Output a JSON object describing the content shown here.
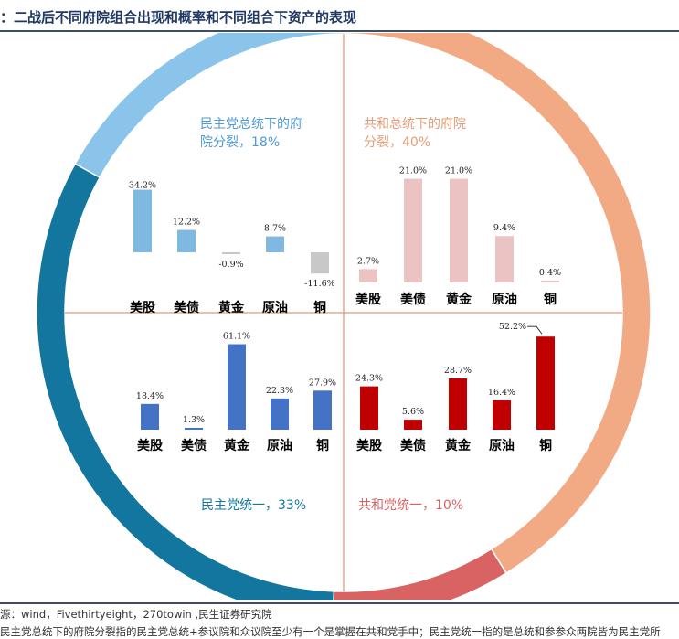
{
  "page": {
    "title": "：二战后不同府院组合出现和概率和不同组合下资产的表现",
    "source": "源：wind，Fivethirtyeight，270towin ,民生证券研究院",
    "note": "民主党总统下的府院分裂指的民主党总统+参议院和众议院至少有一个是掌握在共和党手中；民主党统一指的是总统和参参众两院皆为民主党所"
  },
  "colors": {
    "dem_split": "#8bc4ea",
    "rep_split": "#f2aa84",
    "dem_unified": "#12769e",
    "rep_unified": "#d96363",
    "bar_dem_split": "#7fb8e0",
    "bar_dem_split_neg": "#c8c8c8",
    "bar_rep_split": "#ecc3c3",
    "bar_dem_unified": "#4472c4",
    "bar_rep_unified": "#c00000",
    "divider": "#e49a76",
    "title_dem_split": "#4f9bd6",
    "title_rep_split": "#e69c74",
    "title_dem_unified": "#12769e",
    "title_rep_unified": "#d96363"
  },
  "chart_data": {
    "type": "bar",
    "ring": {
      "type": "pie",
      "categories": [
        "民主党总统下的府院分裂",
        "共和总统下的府院分裂",
        "共和党统一",
        "民主党统一"
      ],
      "values": [
        18,
        40,
        10,
        33
      ]
    },
    "categories": [
      "美股",
      "美债",
      "黄金",
      "原油",
      "铜"
    ],
    "panels": [
      {
        "id": "dem_split",
        "title": "民主党总统下的府院分裂，18%",
        "title_lines": [
          "民主党总统下的府",
          "院分裂，18%"
        ],
        "values": [
          34.2,
          12.2,
          -0.9,
          8.7,
          -11.6
        ],
        "labels": [
          "34.2%",
          "12.2%",
          "-0.9%",
          "8.7%",
          "-11.6%"
        ]
      },
      {
        "id": "rep_split",
        "title": "共和总统下的府院分裂，40%",
        "title_lines": [
          "共和总统下的府院",
          "分裂，40%"
        ],
        "values": [
          2.7,
          21.0,
          21.0,
          9.4,
          0.4
        ],
        "labels": [
          "2.7%",
          "21.0%",
          "21.0%",
          "9.4%",
          "0.4%"
        ]
      },
      {
        "id": "dem_unified",
        "title": "民主党统一，33%",
        "title_lines": [
          "民主党统一，33%"
        ],
        "values": [
          18.4,
          1.3,
          61.1,
          22.3,
          27.9
        ],
        "labels": [
          "18.4%",
          "1.3%",
          "61.1%",
          "22.3%",
          "27.9%"
        ]
      },
      {
        "id": "rep_unified",
        "title": "共和党统一，10%",
        "title_lines": [
          "共和党统一，10%"
        ],
        "values": [
          24.3,
          5.6,
          28.7,
          16.4,
          52.2
        ],
        "labels": [
          "24.3%",
          "5.6%",
          "28.7%",
          "16.4%",
          "52.2%"
        ]
      }
    ]
  }
}
